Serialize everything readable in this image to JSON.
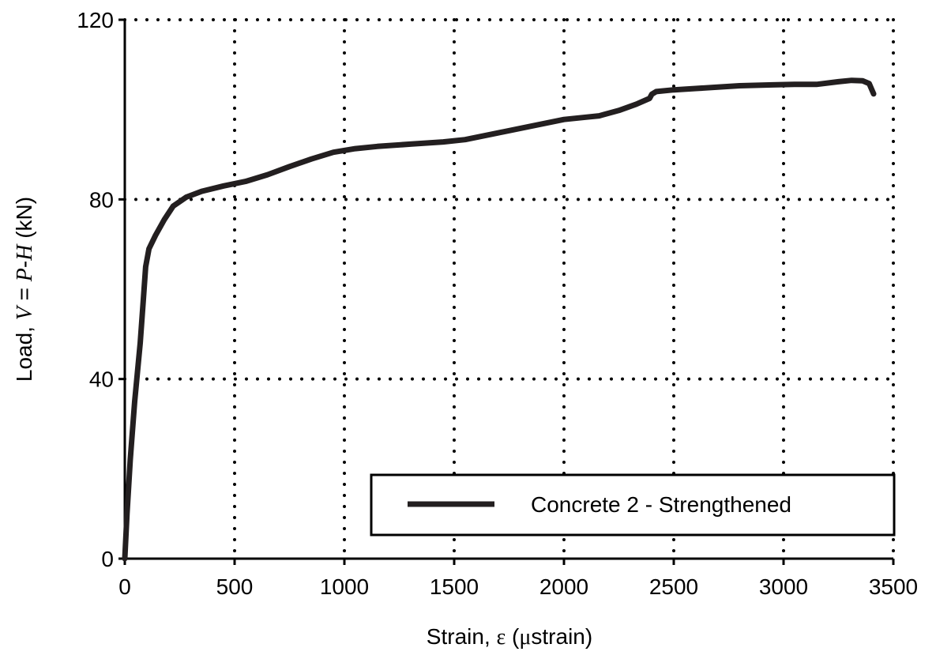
{
  "chart_data": {
    "type": "line",
    "xlabel": {
      "prefix": "Strain, ",
      "symbol": "ε",
      "suffix_open": " (",
      "unit_greek": "μ",
      "unit_rest": "strain)"
    },
    "ylabel": {
      "prefix": "Load, ",
      "var1": "V",
      "eq": " = ",
      "var2": "P",
      "dash": "-",
      "var3": "H",
      "unit": " (kN)"
    },
    "xlim": [
      0,
      3500
    ],
    "ylim": [
      0,
      120
    ],
    "xticks": [
      0,
      500,
      1000,
      1500,
      2000,
      2500,
      3000,
      3500
    ],
    "yticks": [
      0,
      40,
      80,
      120
    ],
    "grid": true,
    "legend_position": "bottom-right",
    "series": [
      {
        "name": "Concrete 2 - Strengthened",
        "color": "#231f20",
        "x": [
          0,
          10,
          25,
          45,
          70,
          85,
          95,
          110,
          140,
          180,
          220,
          280,
          350,
          450,
          550,
          650,
          750,
          850,
          950,
          1050,
          1150,
          1300,
          1450,
          1550,
          1700,
          1850,
          2000,
          2100,
          2160,
          2250,
          2330,
          2390,
          2400,
          2420,
          2500,
          2600,
          2700,
          2800,
          2950,
          3050,
          3150,
          3250,
          3310,
          3360,
          3390,
          3410
        ],
        "y": [
          0,
          10,
          22,
          35,
          48,
          58,
          65,
          69,
          72,
          75.5,
          78.5,
          80.5,
          81.8,
          83,
          84,
          85.5,
          87.3,
          89,
          90.5,
          91.3,
          91.8,
          92.3,
          92.8,
          93.3,
          94.8,
          96.3,
          97.8,
          98.3,
          98.6,
          99.8,
          101.2,
          102.5,
          103.4,
          104,
          104.4,
          104.7,
          105,
          105.3,
          105.5,
          105.6,
          105.6,
          106.2,
          106.5,
          106.4,
          105.8,
          103.5
        ]
      }
    ]
  }
}
